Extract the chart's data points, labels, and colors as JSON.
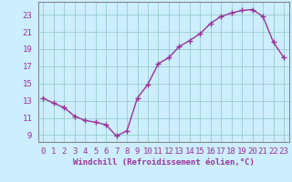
{
  "x_values": [
    0,
    1,
    2,
    3,
    4,
    5,
    6,
    7,
    8,
    9,
    10,
    11,
    12,
    13,
    14,
    15,
    16,
    17,
    18,
    19,
    20,
    21,
    22,
    23
  ],
  "y_values": [
    13.3,
    12.7,
    12.2,
    11.2,
    10.7,
    10.5,
    10.2,
    8.9,
    9.5,
    13.3,
    14.9,
    17.3,
    18.0,
    19.3,
    20.0,
    20.8,
    22.0,
    22.8,
    23.2,
    23.5,
    23.6,
    22.8,
    19.8,
    18.0
  ],
  "line_color": "#993399",
  "marker": "+",
  "marker_size": 4,
  "line_width": 1.0,
  "bg_color": "#cceeff",
  "grid_color": "#99cccc",
  "xlabel": "Windchill (Refroidissement éolien,°C)",
  "xlabel_fontsize": 6.5,
  "tick_fontsize": 6.5,
  "xlim": [
    -0.5,
    23.5
  ],
  "ylim": [
    8.2,
    24.5
  ],
  "yticks": [
    9,
    11,
    13,
    15,
    17,
    19,
    21,
    23
  ],
  "xticks": [
    0,
    1,
    2,
    3,
    4,
    5,
    6,
    7,
    8,
    9,
    10,
    11,
    12,
    13,
    14,
    15,
    16,
    17,
    18,
    19,
    20,
    21,
    22,
    23
  ],
  "spine_color": "#888888"
}
